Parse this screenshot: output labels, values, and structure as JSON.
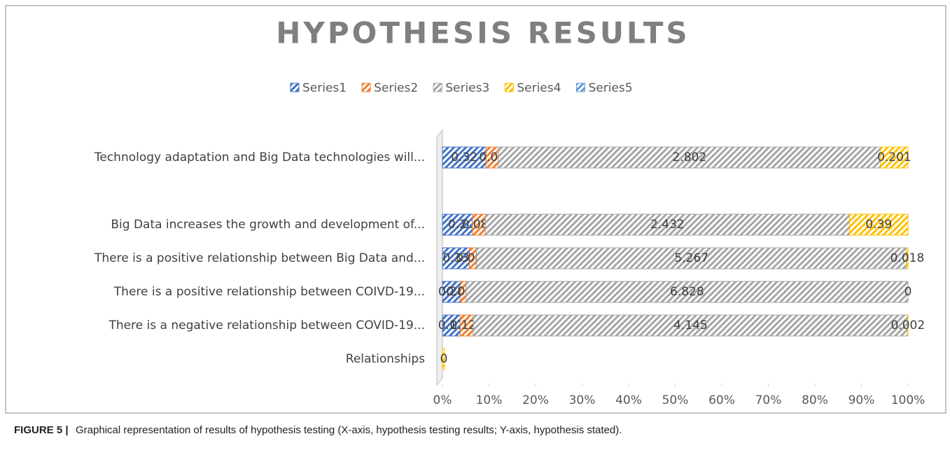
{
  "chart_data": {
    "type": "bar",
    "orientation": "horizontal",
    "stacking": "percent",
    "title": "HYPOTHESIS RESULTS",
    "caption_label": "FIGURE 5 |",
    "caption": "Graphical representation of results of hypothesis testing (X-axis, hypothesis testing results; Y-axis, hypothesis stated).",
    "categories": [
      "Technology adaptation and Big Data technologies will...",
      null,
      "Big Data increases the growth and development of...",
      "There is a positive relationship between Big Data and...",
      "There is a positive relationship between COIVD-19...",
      "There is a negative relationship between COVID-19...",
      "Relationships"
    ],
    "series": [
      {
        "name": "Series1",
        "color": "#4472c4",
        "values": [
          0.32,
          null,
          0.2,
          0.33,
          0.28,
          0.17,
          null
        ]
      },
      {
        "name": "Series2",
        "color": "#ed7d31",
        "values": [
          0.09,
          null,
          0.086,
          0.087,
          0.084,
          0.125,
          null
        ]
      },
      {
        "name": "Series3",
        "color": "#a5a5a5",
        "values": [
          2.802,
          null,
          2.432,
          5.267,
          6.828,
          4.145,
          null
        ]
      },
      {
        "name": "Series4",
        "color": "#ffc000",
        "values": [
          0.201,
          null,
          0.39,
          0.018,
          0,
          0.002,
          0
        ]
      },
      {
        "name": "Series5",
        "color": "#5b9bd5",
        "values": [
          null,
          null,
          null,
          null,
          null,
          null,
          null
        ]
      }
    ],
    "xlim": [
      0,
      100
    ],
    "xticks": [
      {
        "value": 0,
        "label": "0%"
      },
      {
        "value": 10,
        "label": "10%"
      },
      {
        "value": 20,
        "label": "20%"
      },
      {
        "value": 30,
        "label": "30%"
      },
      {
        "value": 40,
        "label": "40%"
      },
      {
        "value": 50,
        "label": "50%"
      },
      {
        "value": 60,
        "label": "60%"
      },
      {
        "value": 70,
        "label": "70%"
      },
      {
        "value": 80,
        "label": "80%"
      },
      {
        "value": 90,
        "label": "90%"
      },
      {
        "value": 100,
        "label": "100%"
      }
    ],
    "legend": "top"
  }
}
